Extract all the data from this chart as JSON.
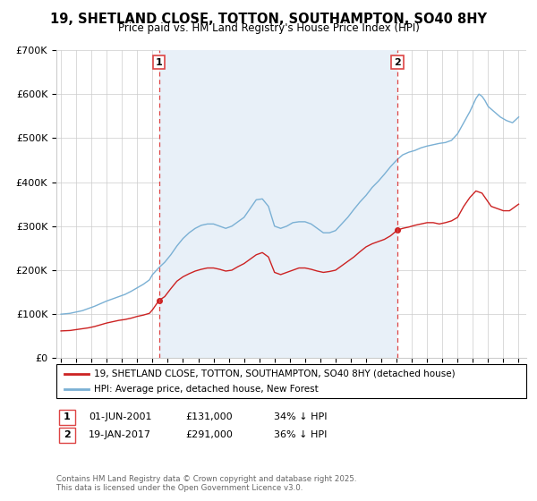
{
  "title": "19, SHETLAND CLOSE, TOTTON, SOUTHAMPTON, SO40 8HY",
  "subtitle": "Price paid vs. HM Land Registry's House Price Index (HPI)",
  "ylim": [
    0,
    700000
  ],
  "yticks": [
    0,
    100000,
    200000,
    300000,
    400000,
    500000,
    600000,
    700000
  ],
  "ytick_labels": [
    "£0",
    "£100K",
    "£200K",
    "£300K",
    "£400K",
    "£500K",
    "£600K",
    "£700K"
  ],
  "xlim_start": 1994.7,
  "xlim_end": 2025.5,
  "marker1_date": 2001.42,
  "marker2_date": 2017.05,
  "marker1_label": "1",
  "marker2_label": "2",
  "red_color": "#cc2222",
  "blue_color": "#7ab0d4",
  "vline_color": "#dd4444",
  "span_color": "#e8f0f8",
  "legend_line1": "19, SHETLAND CLOSE, TOTTON, SOUTHAMPTON, SO40 8HY (detached house)",
  "legend_line2": "HPI: Average price, detached house, New Forest",
  "footer": "Contains HM Land Registry data © Crown copyright and database right 2025.\nThis data is licensed under the Open Government Licence v3.0.",
  "background_color": "#ffffff",
  "grid_color": "#cccccc",
  "title_fontsize": 10.5,
  "subtitle_fontsize": 8.5,
  "red_data": {
    "years": [
      1995.0,
      1995.3,
      1995.6,
      1996.0,
      1996.4,
      1996.8,
      1997.2,
      1997.6,
      1998.0,
      1998.4,
      1998.8,
      1999.2,
      1999.6,
      2000.0,
      2000.4,
      2000.8,
      2001.0,
      2001.42,
      2001.8,
      2002.2,
      2002.6,
      2003.0,
      2003.4,
      2003.8,
      2004.2,
      2004.6,
      2005.0,
      2005.4,
      2005.8,
      2006.2,
      2006.6,
      2007.0,
      2007.4,
      2007.8,
      2008.2,
      2008.6,
      2009.0,
      2009.4,
      2009.8,
      2010.2,
      2010.6,
      2011.0,
      2011.4,
      2011.8,
      2012.2,
      2012.6,
      2013.0,
      2013.4,
      2013.8,
      2014.2,
      2014.6,
      2015.0,
      2015.4,
      2015.8,
      2016.2,
      2016.6,
      2017.05,
      2017.4,
      2017.8,
      2018.2,
      2018.6,
      2019.0,
      2019.4,
      2019.8,
      2020.2,
      2020.6,
      2021.0,
      2021.4,
      2021.8,
      2022.2,
      2022.6,
      2023.0,
      2023.2,
      2023.6,
      2024.0,
      2024.4,
      2024.8,
      2025.0
    ],
    "values": [
      62000,
      62500,
      63000,
      65000,
      67000,
      69000,
      72000,
      76000,
      80000,
      83000,
      86000,
      88000,
      91000,
      95000,
      98000,
      102000,
      110000,
      131000,
      140000,
      158000,
      175000,
      185000,
      192000,
      198000,
      202000,
      205000,
      205000,
      202000,
      198000,
      200000,
      208000,
      215000,
      225000,
      235000,
      240000,
      230000,
      195000,
      190000,
      195000,
      200000,
      205000,
      205000,
      202000,
      198000,
      195000,
      197000,
      200000,
      210000,
      220000,
      230000,
      242000,
      253000,
      260000,
      265000,
      270000,
      278000,
      291000,
      295000,
      298000,
      302000,
      305000,
      308000,
      308000,
      305000,
      308000,
      312000,
      320000,
      345000,
      365000,
      380000,
      375000,
      355000,
      345000,
      340000,
      335000,
      335000,
      345000,
      350000
    ]
  },
  "blue_data": {
    "years": [
      1995.0,
      1995.3,
      1995.6,
      1996.0,
      1996.4,
      1996.8,
      1997.2,
      1997.6,
      1998.0,
      1998.4,
      1998.8,
      1999.2,
      1999.6,
      2000.0,
      2000.4,
      2000.8,
      2001.0,
      2001.4,
      2001.8,
      2002.2,
      2002.6,
      2003.0,
      2003.4,
      2003.8,
      2004.2,
      2004.6,
      2005.0,
      2005.4,
      2005.8,
      2006.2,
      2006.6,
      2007.0,
      2007.4,
      2007.8,
      2008.2,
      2008.6,
      2009.0,
      2009.4,
      2009.8,
      2010.2,
      2010.6,
      2011.0,
      2011.4,
      2011.8,
      2012.2,
      2012.6,
      2013.0,
      2013.4,
      2013.8,
      2014.2,
      2014.6,
      2015.0,
      2015.4,
      2015.8,
      2016.2,
      2016.6,
      2017.0,
      2017.4,
      2017.8,
      2018.2,
      2018.6,
      2019.0,
      2019.4,
      2019.8,
      2020.2,
      2020.6,
      2021.0,
      2021.4,
      2021.8,
      2022.2,
      2022.4,
      2022.6,
      2022.8,
      2023.0,
      2023.4,
      2023.8,
      2024.2,
      2024.6,
      2025.0
    ],
    "values": [
      100000,
      101000,
      102000,
      105000,
      108000,
      113000,
      118000,
      124000,
      130000,
      135000,
      140000,
      145000,
      152000,
      160000,
      168000,
      178000,
      190000,
      205000,
      218000,
      235000,
      255000,
      272000,
      285000,
      295000,
      302000,
      305000,
      305000,
      300000,
      295000,
      300000,
      310000,
      320000,
      340000,
      360000,
      362000,
      345000,
      300000,
      295000,
      300000,
      308000,
      310000,
      310000,
      305000,
      295000,
      285000,
      285000,
      290000,
      305000,
      320000,
      338000,
      355000,
      370000,
      388000,
      402000,
      418000,
      435000,
      450000,
      462000,
      468000,
      472000,
      478000,
      482000,
      485000,
      488000,
      490000,
      495000,
      510000,
      535000,
      560000,
      590000,
      600000,
      595000,
      585000,
      572000,
      560000,
      548000,
      540000,
      535000,
      548000
    ]
  }
}
